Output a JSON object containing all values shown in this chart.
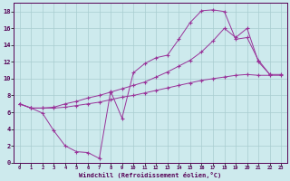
{
  "xlabel": "Windchill (Refroidissement éolien,°C)",
  "bg_color": "#cdeaed",
  "grid_color": "#a8cdd0",
  "line_color": "#993399",
  "xlim": [
    -0.5,
    23.5
  ],
  "ylim": [
    0,
    19
  ],
  "xticks": [
    0,
    1,
    2,
    3,
    4,
    5,
    6,
    7,
    8,
    9,
    10,
    11,
    12,
    13,
    14,
    15,
    16,
    17,
    18,
    19,
    20,
    21,
    22,
    23
  ],
  "yticks": [
    0,
    2,
    4,
    6,
    8,
    10,
    12,
    14,
    16,
    18
  ],
  "line1_x": [
    0,
    1,
    2,
    3,
    4,
    5,
    6,
    7,
    8,
    9,
    10,
    11,
    12,
    13,
    14,
    15,
    16,
    17,
    18,
    19,
    20,
    21,
    22
  ],
  "line1_y": [
    7.0,
    6.5,
    5.9,
    3.8,
    2.0,
    1.3,
    1.2,
    0.5,
    8.5,
    5.3,
    10.7,
    11.8,
    12.5,
    12.8,
    14.7,
    16.7,
    18.1,
    18.2,
    18.0,
    14.7,
    14.9,
    12.2,
    10.5
  ],
  "line2_x": [
    0,
    1,
    2,
    3,
    4,
    5,
    6,
    7,
    8,
    9,
    10,
    11,
    12,
    13,
    14,
    15,
    16,
    17,
    18,
    19,
    20,
    21,
    22,
    23
  ],
  "line2_y": [
    7.0,
    6.5,
    6.5,
    6.5,
    6.6,
    6.8,
    7.0,
    7.2,
    7.5,
    7.8,
    8.0,
    8.3,
    8.6,
    8.9,
    9.2,
    9.5,
    9.8,
    10.0,
    10.2,
    10.4,
    10.5,
    10.4,
    10.4,
    10.4
  ],
  "line3_x": [
    0,
    1,
    2,
    3,
    4,
    5,
    6,
    7,
    8,
    9,
    10,
    11,
    12,
    13,
    14,
    15,
    16,
    17,
    18,
    19,
    20,
    21,
    22,
    23
  ],
  "line3_y": [
    7.0,
    6.5,
    6.5,
    6.6,
    7.0,
    7.3,
    7.7,
    8.0,
    8.4,
    8.8,
    9.2,
    9.6,
    10.2,
    10.8,
    11.5,
    12.2,
    13.2,
    14.5,
    16.0,
    14.9,
    16.0,
    12.0,
    10.5,
    10.5
  ]
}
